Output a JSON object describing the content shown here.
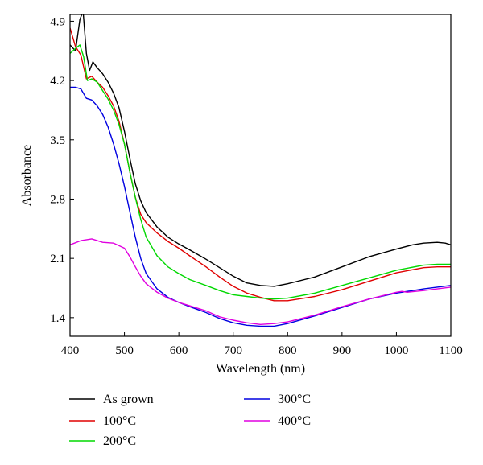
{
  "chart_data": {
    "type": "line",
    "xlabel": "Wavelength (nm)",
    "ylabel": "Absorbance",
    "xlim": [
      400,
      1100
    ],
    "ylim": [
      1.18,
      4.98
    ],
    "xticks": [
      "400",
      "500",
      "600",
      "700",
      "800",
      "900",
      "1000",
      "1100"
    ],
    "yticks": [
      "1.4",
      "2.1",
      "2.8",
      "3.5",
      "4.2",
      "4.9"
    ],
    "grid": false,
    "legend_position": "bottom",
    "series": [
      {
        "name": "As grown",
        "color": "#000000",
        "points": [
          [
            400,
            4.62
          ],
          [
            410,
            4.55
          ],
          [
            418,
            4.92
          ],
          [
            424,
            5.02
          ],
          [
            430,
            4.52
          ],
          [
            436,
            4.32
          ],
          [
            442,
            4.42
          ],
          [
            450,
            4.35
          ],
          [
            460,
            4.28
          ],
          [
            470,
            4.18
          ],
          [
            480,
            4.05
          ],
          [
            490,
            3.88
          ],
          [
            500,
            3.6
          ],
          [
            510,
            3.28
          ],
          [
            520,
            2.98
          ],
          [
            530,
            2.78
          ],
          [
            540,
            2.64
          ],
          [
            560,
            2.47
          ],
          [
            580,
            2.35
          ],
          [
            600,
            2.27
          ],
          [
            620,
            2.2
          ],
          [
            650,
            2.09
          ],
          [
            675,
            1.99
          ],
          [
            700,
            1.89
          ],
          [
            725,
            1.81
          ],
          [
            750,
            1.78
          ],
          [
            775,
            1.77
          ],
          [
            800,
            1.8
          ],
          [
            850,
            1.88
          ],
          [
            900,
            2.0
          ],
          [
            950,
            2.12
          ],
          [
            1000,
            2.21
          ],
          [
            1030,
            2.26
          ],
          [
            1050,
            2.28
          ],
          [
            1075,
            2.29
          ],
          [
            1090,
            2.28
          ],
          [
            1100,
            2.26
          ]
        ]
      },
      {
        "name": "100°C",
        "color": "#e00000",
        "points": [
          [
            400,
            4.82
          ],
          [
            410,
            4.6
          ],
          [
            420,
            4.5
          ],
          [
            430,
            4.22
          ],
          [
            440,
            4.25
          ],
          [
            450,
            4.18
          ],
          [
            460,
            4.12
          ],
          [
            470,
            4.02
          ],
          [
            480,
            3.9
          ],
          [
            490,
            3.72
          ],
          [
            500,
            3.45
          ],
          [
            510,
            3.12
          ],
          [
            520,
            2.82
          ],
          [
            530,
            2.62
          ],
          [
            540,
            2.52
          ],
          [
            560,
            2.4
          ],
          [
            580,
            2.3
          ],
          [
            600,
            2.22
          ],
          [
            620,
            2.13
          ],
          [
            650,
            2.0
          ],
          [
            675,
            1.88
          ],
          [
            700,
            1.77
          ],
          [
            725,
            1.69
          ],
          [
            750,
            1.64
          ],
          [
            775,
            1.6
          ],
          [
            800,
            1.6
          ],
          [
            850,
            1.65
          ],
          [
            900,
            1.73
          ],
          [
            950,
            1.83
          ],
          [
            1000,
            1.93
          ],
          [
            1050,
            1.99
          ],
          [
            1075,
            2.0
          ],
          [
            1100,
            2.0
          ]
        ]
      },
      {
        "name": "200°C",
        "color": "#00d800",
        "points": [
          [
            400,
            4.52
          ],
          [
            410,
            4.58
          ],
          [
            418,
            4.62
          ],
          [
            425,
            4.48
          ],
          [
            432,
            4.2
          ],
          [
            440,
            4.22
          ],
          [
            450,
            4.18
          ],
          [
            460,
            4.08
          ],
          [
            470,
            3.98
          ],
          [
            480,
            3.85
          ],
          [
            490,
            3.68
          ],
          [
            500,
            3.45
          ],
          [
            510,
            3.12
          ],
          [
            520,
            2.82
          ],
          [
            530,
            2.56
          ],
          [
            540,
            2.35
          ],
          [
            560,
            2.13
          ],
          [
            580,
            2.0
          ],
          [
            600,
            1.92
          ],
          [
            620,
            1.85
          ],
          [
            650,
            1.78
          ],
          [
            675,
            1.72
          ],
          [
            700,
            1.67
          ],
          [
            725,
            1.65
          ],
          [
            750,
            1.63
          ],
          [
            775,
            1.62
          ],
          [
            800,
            1.63
          ],
          [
            850,
            1.69
          ],
          [
            900,
            1.78
          ],
          [
            950,
            1.87
          ],
          [
            1000,
            1.96
          ],
          [
            1050,
            2.02
          ],
          [
            1075,
            2.03
          ],
          [
            1100,
            2.03
          ]
        ]
      },
      {
        "name": "300°C",
        "color": "#0000e0",
        "points": [
          [
            400,
            4.12
          ],
          [
            410,
            4.12
          ],
          [
            420,
            4.1
          ],
          [
            430,
            3.99
          ],
          [
            440,
            3.97
          ],
          [
            450,
            3.9
          ],
          [
            460,
            3.8
          ],
          [
            470,
            3.65
          ],
          [
            480,
            3.45
          ],
          [
            490,
            3.22
          ],
          [
            500,
            2.95
          ],
          [
            510,
            2.65
          ],
          [
            520,
            2.35
          ],
          [
            530,
            2.1
          ],
          [
            540,
            1.92
          ],
          [
            560,
            1.74
          ],
          [
            580,
            1.64
          ],
          [
            600,
            1.58
          ],
          [
            620,
            1.53
          ],
          [
            650,
            1.46
          ],
          [
            675,
            1.39
          ],
          [
            700,
            1.34
          ],
          [
            725,
            1.31
          ],
          [
            750,
            1.3
          ],
          [
            775,
            1.3
          ],
          [
            800,
            1.33
          ],
          [
            850,
            1.42
          ],
          [
            900,
            1.52
          ],
          [
            950,
            1.62
          ],
          [
            1000,
            1.69
          ],
          [
            1050,
            1.74
          ],
          [
            1075,
            1.76
          ],
          [
            1100,
            1.78
          ]
        ]
      },
      {
        "name": "400°C",
        "color": "#e000e0",
        "points": [
          [
            400,
            2.26
          ],
          [
            420,
            2.31
          ],
          [
            440,
            2.33
          ],
          [
            460,
            2.29
          ],
          [
            480,
            2.28
          ],
          [
            500,
            2.22
          ],
          [
            510,
            2.12
          ],
          [
            520,
            2.0
          ],
          [
            530,
            1.89
          ],
          [
            540,
            1.8
          ],
          [
            560,
            1.7
          ],
          [
            580,
            1.63
          ],
          [
            600,
            1.58
          ],
          [
            620,
            1.54
          ],
          [
            650,
            1.48
          ],
          [
            675,
            1.41
          ],
          [
            700,
            1.37
          ],
          [
            725,
            1.34
          ],
          [
            750,
            1.32
          ],
          [
            775,
            1.33
          ],
          [
            800,
            1.35
          ],
          [
            850,
            1.43
          ],
          [
            900,
            1.53
          ],
          [
            950,
            1.62
          ],
          [
            1000,
            1.7
          ],
          [
            1010,
            1.71
          ],
          [
            1020,
            1.7
          ],
          [
            1050,
            1.72
          ],
          [
            1075,
            1.74
          ],
          [
            1100,
            1.76
          ]
        ]
      }
    ]
  }
}
